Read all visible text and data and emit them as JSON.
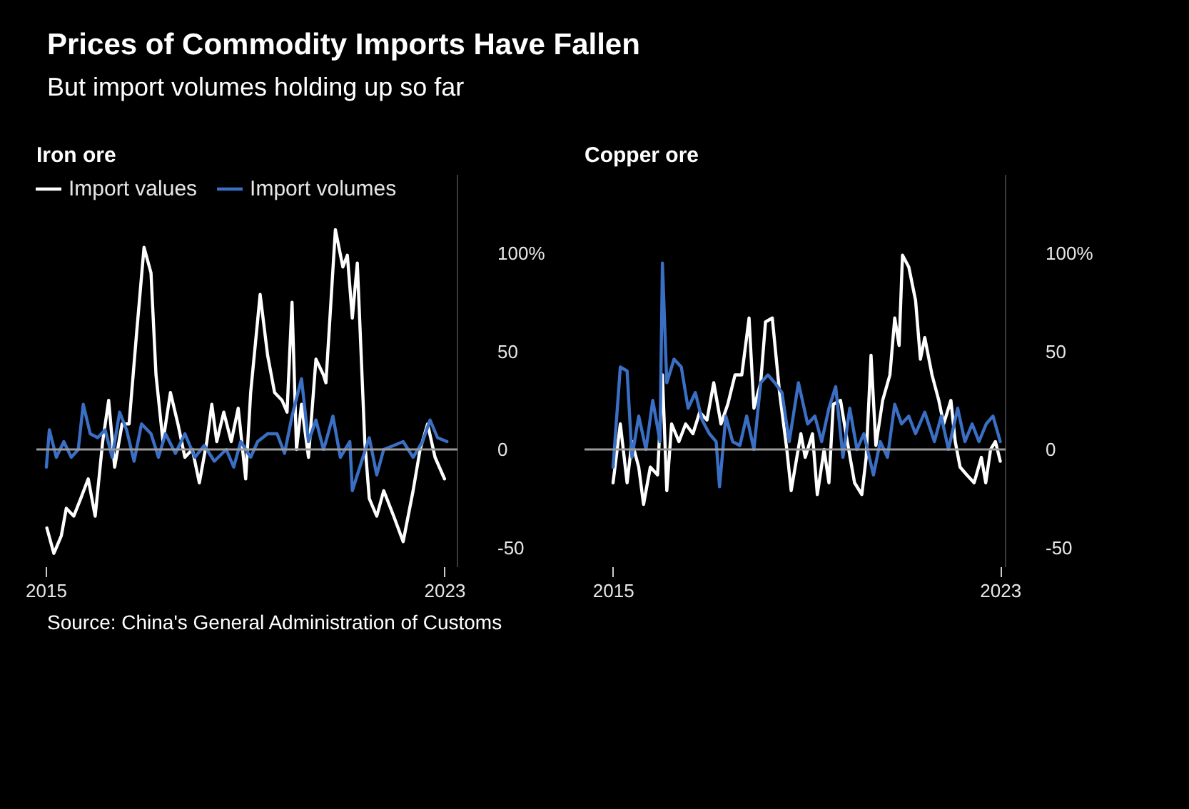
{
  "chart_data": [
    {
      "type": "other",
      "title": "Prices of Commodity Imports Have Fallen",
      "subtitle": "But import volumes holding up so far",
      "annotations": [
        "Source: China's General Administration of Customs"
      ]
    },
    {
      "type": "line",
      "title": "Iron ore",
      "xlim": [
        2014.8,
        2023.25
      ],
      "ylim": [
        -60,
        140
      ],
      "xticks": [
        2015,
        2023
      ],
      "yticks": [
        {
          "value": 100,
          "label": "100%"
        },
        50,
        0,
        -50
      ],
      "grid": false,
      "legend": "top left",
      "ref_lines": [
        {
          "axis": "y",
          "value": 0,
          "color": "#9a9a9a"
        }
      ],
      "series": [
        {
          "name": "Import values",
          "color": "#ffffff",
          "x": [
            2015.01,
            2015.15,
            2015.3,
            2015.4,
            2015.55,
            2015.69,
            2015.84,
            2015.98,
            2016.13,
            2016.25,
            2016.37,
            2016.52,
            2016.66,
            2016.81,
            2016.96,
            2017.1,
            2017.2,
            2017.34,
            2017.49,
            2017.64,
            2017.78,
            2017.93,
            2018.07,
            2018.22,
            2018.32,
            2018.42,
            2018.56,
            2018.71,
            2018.85,
            2019.0,
            2019.1,
            2019.29,
            2019.44,
            2019.58,
            2019.73,
            2019.83,
            2019.93,
            2020.02,
            2020.12,
            2020.26,
            2020.41,
            2020.56,
            2020.61,
            2020.8,
            2020.95,
            2021.04,
            2021.14,
            2021.24,
            2021.39,
            2021.48,
            2021.63,
            2021.77,
            2021.97,
            2022.16,
            2022.36,
            2022.5,
            2022.65,
            2022.8,
            2022.99
          ],
          "values": [
            -40,
            -53,
            -44,
            -30,
            -34,
            -25,
            -15,
            -34,
            4,
            25,
            -9,
            13,
            13,
            59,
            103,
            90,
            38,
            4,
            29,
            13,
            -4,
            0,
            -17,
            4,
            23,
            4,
            19,
            4,
            21,
            -15,
            29,
            79,
            48,
            29,
            25,
            19,
            75,
            0,
            23,
            -4,
            46,
            38,
            34,
            112,
            93,
            99,
            67,
            95,
            4,
            -25,
            -34,
            -21,
            -34,
            -47,
            -21,
            0,
            13,
            -4,
            -15
          ]
        },
        {
          "name": "Import volumes",
          "color": "#3a6fc4",
          "x": [
            2015.0,
            2015.06,
            2015.2,
            2015.35,
            2015.5,
            2015.64,
            2015.74,
            2015.88,
            2016.03,
            2016.18,
            2016.32,
            2016.47,
            2016.61,
            2016.76,
            2016.91,
            2017.1,
            2017.25,
            2017.39,
            2017.59,
            2017.78,
            2017.98,
            2018.17,
            2018.37,
            2018.61,
            2018.76,
            2018.9,
            2019.1,
            2019.24,
            2019.44,
            2019.63,
            2019.78,
            2019.93,
            2020.12,
            2020.26,
            2020.41,
            2020.56,
            2020.61,
            2020.75,
            2020.9,
            2021.09,
            2021.14,
            2021.29,
            2021.48,
            2021.63,
            2021.77,
            2021.97,
            2022.16,
            2022.36,
            2022.55,
            2022.7,
            2022.85,
            2023.04
          ],
          "values": [
            -9,
            10,
            -4,
            4,
            -4,
            0,
            23,
            8,
            6,
            10,
            -4,
            19,
            10,
            -6,
            13,
            8,
            -4,
            8,
            -2,
            8,
            -4,
            2,
            -6,
            0,
            -9,
            4,
            -4,
            4,
            8,
            8,
            -2,
            17,
            36,
            4,
            15,
            0,
            4,
            17,
            -4,
            4,
            -21,
            -9,
            6,
            -13,
            0,
            2,
            4,
            -4,
            4,
            15,
            6,
            4
          ]
        }
      ]
    },
    {
      "type": "line",
      "title": "Copper ore",
      "xlim": [
        2014.4,
        2023.1
      ],
      "ylim": [
        -60,
        140
      ],
      "xticks": [
        2015,
        2023
      ],
      "yticks": [
        {
          "value": 100,
          "label": "100%"
        },
        50,
        0,
        -50
      ],
      "grid": false,
      "ref_lines": [
        {
          "axis": "y",
          "value": 0,
          "color": "#9a9a9a"
        }
      ],
      "series": [
        {
          "color": "#ffffff",
          "x": [
            2014.99,
            2015.14,
            2015.28,
            2015.38,
            2015.52,
            2015.62,
            2015.76,
            2015.91,
            2016.01,
            2016.1,
            2016.2,
            2016.35,
            2016.49,
            2016.64,
            2016.78,
            2016.93,
            2017.07,
            2017.22,
            2017.36,
            2017.51,
            2017.65,
            2017.8,
            2017.9,
            2018.04,
            2018.14,
            2018.28,
            2018.43,
            2018.58,
            2018.67,
            2018.87,
            2018.96,
            2019.11,
            2019.21,
            2019.35,
            2019.45,
            2019.54,
            2019.69,
            2019.83,
            2019.98,
            2020.13,
            2020.22,
            2020.32,
            2020.42,
            2020.56,
            2020.71,
            2020.81,
            2020.9,
            2020.97,
            2021.1,
            2021.24,
            2021.34,
            2021.43,
            2021.58,
            2021.72,
            2021.82,
            2021.97,
            2022.06,
            2022.16,
            2022.3,
            2022.45,
            2022.6,
            2022.69,
            2022.79,
            2022.89,
            2022.99
          ],
          "values": [
            -17,
            13,
            -17,
            4,
            -9,
            -28,
            -9,
            -13,
            38,
            -21,
            13,
            4,
            13,
            8,
            19,
            15,
            34,
            13,
            23,
            38,
            38,
            67,
            21,
            34,
            65,
            67,
            29,
            0,
            -21,
            8,
            -4,
            8,
            -23,
            0,
            -17,
            23,
            25,
            4,
            -17,
            -23,
            -4,
            48,
            2,
            25,
            38,
            67,
            53,
            99,
            93,
            76,
            46,
            57,
            38,
            25,
            13,
            25,
            4,
            -9,
            -13,
            -17,
            -4,
            -17,
            0,
            4,
            -6
          ]
        },
        {
          "color": "#3a6fc4",
          "x": [
            2014.99,
            2015.14,
            2015.28,
            2015.38,
            2015.52,
            2015.67,
            2015.81,
            2015.96,
            2016.01,
            2016.1,
            2016.25,
            2016.4,
            2016.54,
            2016.69,
            2016.83,
            2016.98,
            2017.12,
            2017.19,
            2017.32,
            2017.46,
            2017.61,
            2017.75,
            2017.9,
            2018.04,
            2018.19,
            2018.33,
            2018.48,
            2018.63,
            2018.82,
            2019.01,
            2019.16,
            2019.3,
            2019.45,
            2019.59,
            2019.74,
            2019.88,
            2020.03,
            2020.17,
            2020.37,
            2020.51,
            2020.66,
            2020.81,
            2020.95,
            2021.1,
            2021.24,
            2021.43,
            2021.63,
            2021.77,
            2021.92,
            2022.11,
            2022.26,
            2022.41,
            2022.55,
            2022.7,
            2022.84,
            2022.99
          ],
          "values": [
            -9,
            42,
            40,
            -4,
            17,
            0,
            25,
            4,
            95,
            34,
            46,
            42,
            21,
            29,
            15,
            8,
            4,
            -19,
            17,
            4,
            2,
            17,
            0,
            34,
            38,
            34,
            29,
            4,
            34,
            13,
            17,
            4,
            21,
            32,
            -4,
            21,
            0,
            8,
            -13,
            4,
            -4,
            23,
            13,
            17,
            8,
            19,
            4,
            17,
            0,
            21,
            4,
            13,
            4,
            13,
            17,
            4
          ]
        }
      ]
    }
  ]
}
